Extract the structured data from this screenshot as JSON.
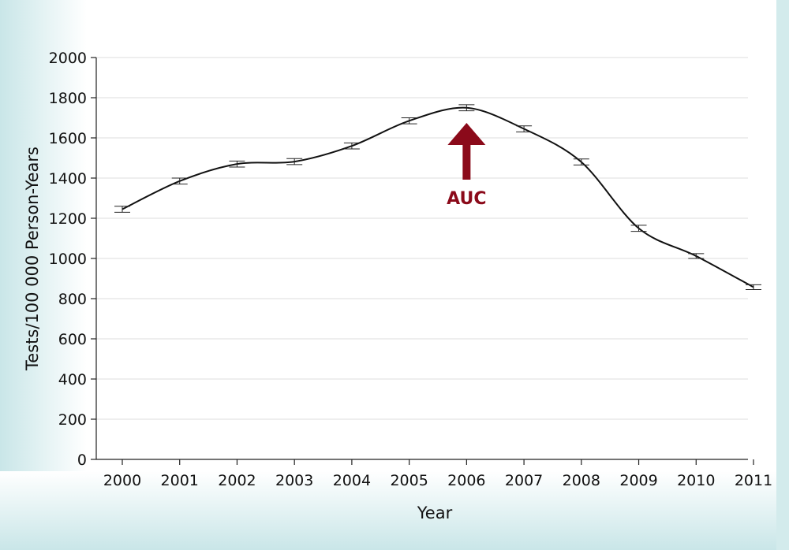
{
  "chart_data": {
    "type": "line",
    "title": "",
    "xlabel": "Year",
    "ylabel": "Tests/100 000 Person-Years",
    "x": [
      2000,
      2001,
      2002,
      2003,
      2004,
      2005,
      2006,
      2007,
      2008,
      2009,
      2010,
      2011
    ],
    "series": [
      {
        "values": [
          1245,
          1385,
          1470,
          1482,
          1560,
          1685,
          1750,
          1645,
          1480,
          1150,
          1012,
          857
        ],
        "error": [
          15,
          15,
          15,
          15,
          15,
          15,
          15,
          15,
          15,
          15,
          12,
          12
        ]
      }
    ],
    "xlim": [
      2000,
      2011
    ],
    "ylim": [
      0,
      2000
    ],
    "yticks": [
      0,
      200,
      400,
      600,
      800,
      1000,
      1200,
      1400,
      1600,
      1800,
      2000
    ],
    "grid": true,
    "annotation": {
      "label": "AUC",
      "x": 2006,
      "color": "#8b0a1a"
    },
    "colors": {
      "line": "#111111",
      "grid": "#dddddd",
      "background_gradient": "#cfe8e9"
    }
  }
}
